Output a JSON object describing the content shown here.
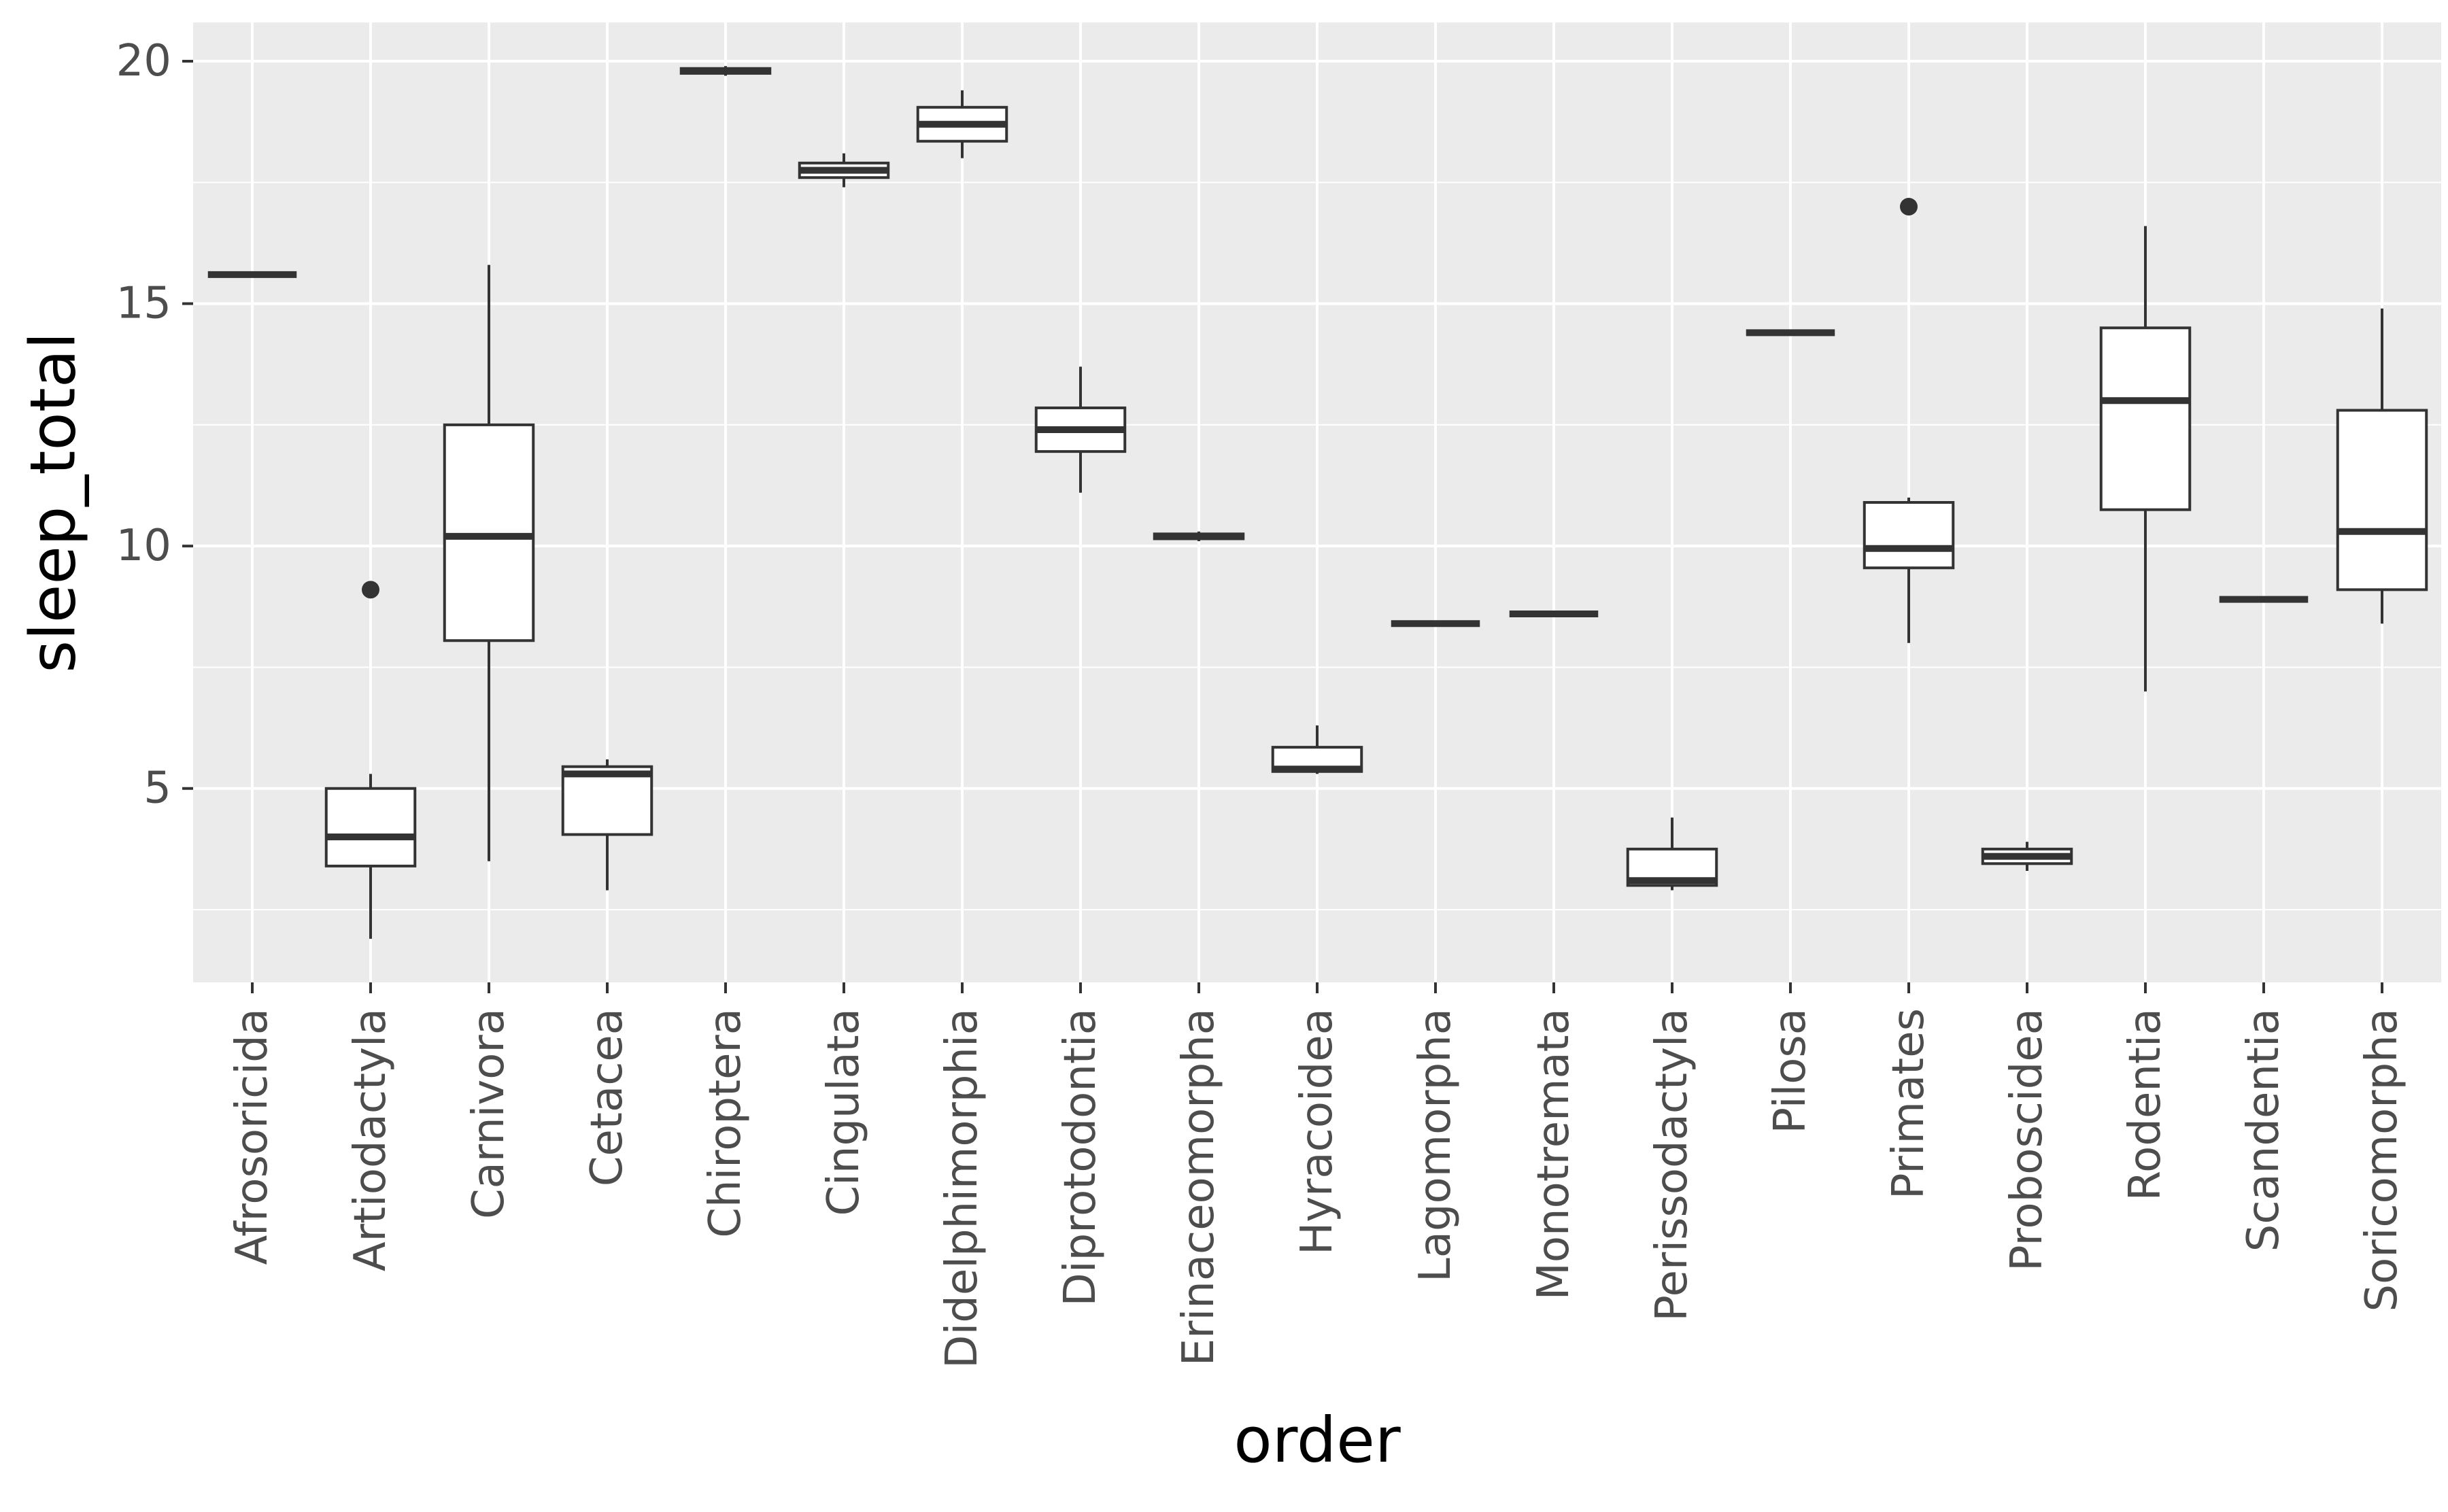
{
  "chart_data": {
    "type": "boxplot",
    "title": "",
    "xlabel": "order",
    "ylabel": "sleep_total",
    "ylim": [
      1.0,
      20.8
    ],
    "yticks": [
      5,
      10,
      15,
      20
    ],
    "yticks_minor": [
      2.5,
      7.5,
      12.5,
      17.5
    ],
    "grid": true,
    "legend": "none",
    "categories": [
      "Afrosoricida",
      "Artiodactyla",
      "Carnivora",
      "Cetacea",
      "Chiroptera",
      "Cingulata",
      "Didelphimorphia",
      "Diprotodontia",
      "Erinaceomorpha",
      "Hyracoidea",
      "Lagomorpha",
      "Monotremata",
      "Perissodactyla",
      "Pilosa",
      "Primates",
      "Proboscidea",
      "Rodentia",
      "Scandentia",
      "Soricomorpha"
    ],
    "boxes": [
      {
        "order": "Afrosoricida",
        "min": 15.6,
        "q1": 15.6,
        "median": 15.6,
        "q3": 15.6,
        "max": 15.6,
        "outliers": []
      },
      {
        "order": "Artiodactyla",
        "min": 1.9,
        "q1": 3.4,
        "median": 4.0,
        "q3": 5.0,
        "max": 5.3,
        "outliers": [
          9.1
        ]
      },
      {
        "order": "Carnivora",
        "min": 3.5,
        "q1": 8.05,
        "median": 10.2,
        "q3": 12.5,
        "max": 15.8,
        "outliers": []
      },
      {
        "order": "Cetacea",
        "min": 2.9,
        "q1": 4.05,
        "median": 5.3,
        "q3": 5.45,
        "max": 5.6,
        "outliers": []
      },
      {
        "order": "Chiroptera",
        "min": 19.7,
        "q1": 19.75,
        "median": 19.8,
        "q3": 19.85,
        "max": 19.9,
        "outliers": []
      },
      {
        "order": "Cingulata",
        "min": 17.4,
        "q1": 17.6,
        "median": 17.75,
        "q3": 17.9,
        "max": 18.1,
        "outliers": []
      },
      {
        "order": "Didelphimorphia",
        "min": 18.0,
        "q1": 18.35,
        "median": 18.7,
        "q3": 19.05,
        "max": 19.4,
        "outliers": []
      },
      {
        "order": "Diprotodontia",
        "min": 11.1,
        "q1": 11.95,
        "median": 12.4,
        "q3": 12.85,
        "max": 13.7,
        "outliers": []
      },
      {
        "order": "Erinaceomorpha",
        "min": 10.1,
        "q1": 10.15,
        "median": 10.2,
        "q3": 10.25,
        "max": 10.3,
        "outliers": []
      },
      {
        "order": "Hyracoidea",
        "min": 5.3,
        "q1": 5.35,
        "median": 5.4,
        "q3": 5.85,
        "max": 6.3,
        "outliers": []
      },
      {
        "order": "Lagomorpha",
        "min": 8.4,
        "q1": 8.4,
        "median": 8.4,
        "q3": 8.4,
        "max": 8.4,
        "outliers": []
      },
      {
        "order": "Monotremata",
        "min": 8.6,
        "q1": 8.6,
        "median": 8.6,
        "q3": 8.6,
        "max": 8.6,
        "outliers": []
      },
      {
        "order": "Perissodactyla",
        "min": 2.9,
        "q1": 3.0,
        "median": 3.1,
        "q3": 3.75,
        "max": 4.4,
        "outliers": []
      },
      {
        "order": "Pilosa",
        "min": 14.4,
        "q1": 14.4,
        "median": 14.4,
        "q3": 14.4,
        "max": 14.4,
        "outliers": []
      },
      {
        "order": "Primates",
        "min": 8.0,
        "q1": 9.55,
        "median": 9.95,
        "q3": 10.9,
        "max": 11.0,
        "outliers": [
          17.0
        ]
      },
      {
        "order": "Proboscidea",
        "min": 3.3,
        "q1": 3.45,
        "median": 3.6,
        "q3": 3.75,
        "max": 3.9,
        "outliers": []
      },
      {
        "order": "Rodentia",
        "min": 7.0,
        "q1": 10.75,
        "median": 13.0,
        "q3": 14.5,
        "max": 16.6,
        "outliers": []
      },
      {
        "order": "Scandentia",
        "min": 8.9,
        "q1": 8.9,
        "median": 8.9,
        "q3": 8.9,
        "max": 8.9,
        "outliers": []
      },
      {
        "order": "Soricomorpha",
        "min": 8.4,
        "q1": 9.1,
        "median": 10.3,
        "q3": 12.8,
        "max": 14.9,
        "outliers": []
      }
    ],
    "style": {
      "panel_bg": "#EBEBEB",
      "grid_major": "#FFFFFF",
      "grid_minor": "#FFFFFF",
      "box_stroke": "#333333",
      "box_fill": "#FFFFFF",
      "outlier_fill": "#333333",
      "tick_color": "#333333",
      "axis_text_color": "#4D4D4D",
      "axis_title_color": "#000000"
    }
  }
}
